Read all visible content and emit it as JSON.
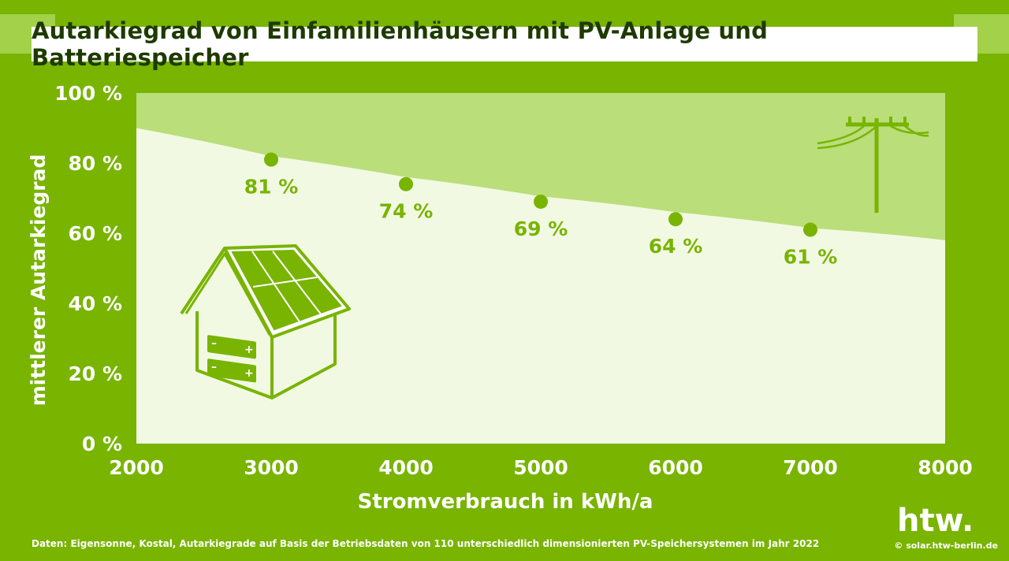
{
  "chart_data": {
    "type": "scatter",
    "title": "Autarkiegrad von Einfamilienhäusern mit PV-Anlage und Batteriespeicher",
    "xlabel": "Stromverbrauch in kWh/a",
    "ylabel": "mittlerer Autarkiegrad",
    "xlim": [
      2000,
      8000
    ],
    "ylim": [
      0,
      100
    ],
    "x_ticks": [
      2000,
      3000,
      4000,
      5000,
      6000,
      7000,
      8000
    ],
    "y_ticks": [
      0,
      20,
      40,
      60,
      80,
      100
    ],
    "y_tick_labels": [
      "0 %",
      "20 %",
      "40 %",
      "60 %",
      "80 %",
      "100 %"
    ],
    "series": [
      {
        "name": "Autarkiegrad",
        "x": [
          3000,
          4000,
          5000,
          6000,
          7000
        ],
        "y": [
          81,
          74,
          69,
          64,
          61
        ],
        "labels": [
          "81 %",
          "74 %",
          "69 %",
          "64 %",
          "61 %"
        ]
      }
    ],
    "upper_band_curve": {
      "x": [
        2000,
        3000,
        4000,
        5000,
        6000,
        7000,
        8000
      ],
      "y": [
        90,
        82,
        76,
        70.5,
        66,
        61.5,
        58
      ]
    },
    "grid": false
  },
  "footer": {
    "source": "Daten: Eigensonne, Kostal, Autarkiegrade auf Basis der Betriebsdaten von 110 unterschiedlich dimensionierten PV-Speichersystemen im Jahr 2022",
    "copyright": "© solar.htw-berlin.de"
  },
  "logo": {
    "text": "htw."
  },
  "colors": {
    "background": "#78b400",
    "plot_lower": "#f2f9e3",
    "plot_upper": "#bade7a",
    "marker": "#78b400",
    "title_text": "#1e3a00",
    "band_light": "#a3d14a"
  }
}
